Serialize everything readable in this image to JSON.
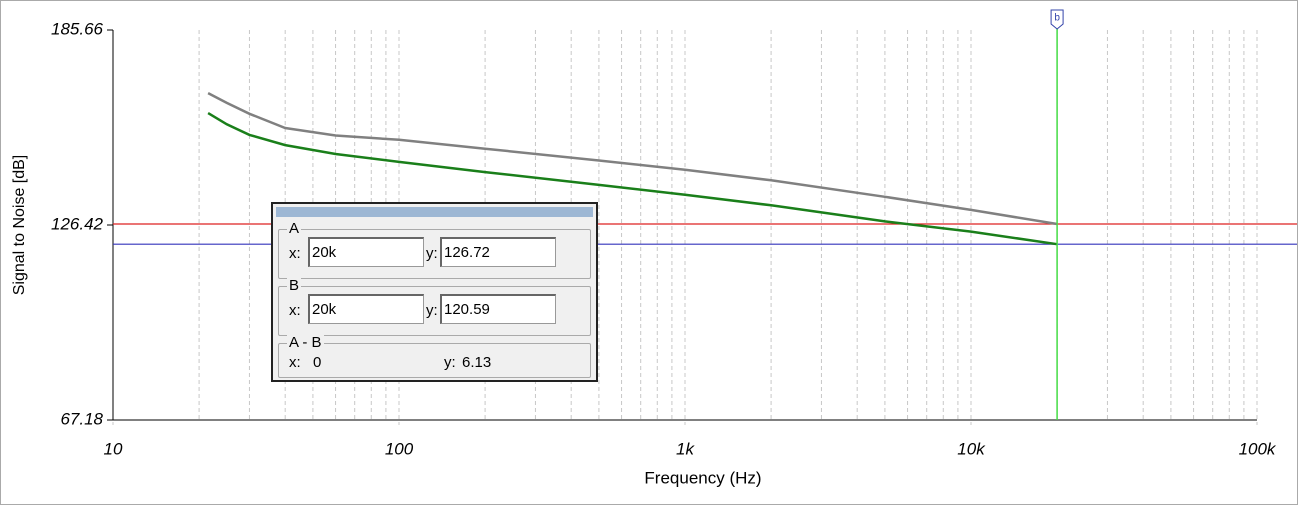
{
  "chart_data": {
    "type": "line",
    "xlabel": "Frequency (Hz)",
    "ylabel": "Signal to Noise [dB]",
    "xscale": "log",
    "xlim": [
      10,
      100000
    ],
    "ylim": [
      67.18,
      185.66
    ],
    "xticks": [
      10,
      100,
      {
        "value": 1000,
        "label": "1k"
      },
      {
        "value": 10000,
        "label": "10k"
      },
      {
        "value": 100000,
        "label": "100k"
      }
    ],
    "yticks": [
      67.18,
      126.42,
      185.66
    ],
    "series": [
      {
        "color": "#808080",
        "x": [
          21.5,
          25,
          30,
          40,
          60,
          100,
          200,
          500,
          1000,
          2000,
          5000,
          10000,
          20000
        ],
        "values": [
          166.5,
          163.5,
          160.2,
          155.9,
          153.6,
          152.3,
          149.6,
          146.0,
          143.2,
          140.0,
          135.0,
          131.0,
          126.72
        ]
      },
      {
        "color": "#1a7f1a",
        "x": [
          21.5,
          25,
          30,
          40,
          60,
          100,
          200,
          500,
          1000,
          2000,
          5000,
          10000,
          20000
        ],
        "values": [
          160.4,
          157.0,
          153.8,
          150.7,
          148.0,
          145.6,
          142.5,
          138.6,
          135.6,
          132.4,
          127.5,
          124.4,
          120.59
        ]
      }
    ],
    "cursor_x": 20000,
    "cursor_x_color": "#44dd44",
    "cursor_label": "b",
    "hlines": [
      {
        "value": 126.72,
        "color": "#dd2222"
      },
      {
        "value": 120.59,
        "color": "#3333bb"
      }
    ]
  },
  "dialog": {
    "a": {
      "title": "A",
      "x_label": "x:",
      "x": "20k",
      "y_label": "y:",
      "y": "126.72"
    },
    "b": {
      "title": "B",
      "x_label": "x:",
      "x": "20k",
      "y_label": "y:",
      "y": "120.59"
    },
    "diff": {
      "title": "A - B",
      "x_label": "x:",
      "x": "0",
      "y_label": "y:",
      "y": "6.13"
    }
  }
}
